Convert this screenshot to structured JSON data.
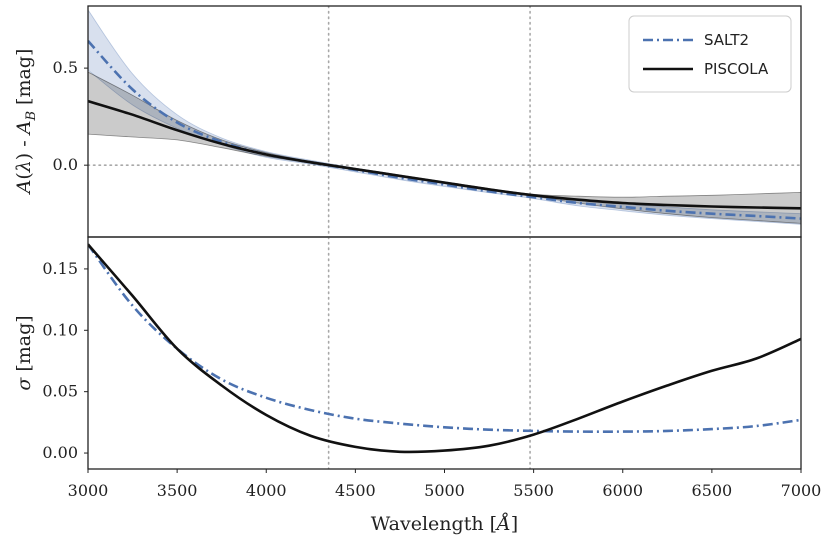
{
  "chart_data": [
    {
      "type": "line",
      "panel": "top",
      "ylabel": "A(λ) - A_B [mag]",
      "ylim": [
        -0.37,
        0.82
      ],
      "yticks": [
        0.0,
        0.5
      ],
      "ytick_labels": [
        "0.0",
        "0.5"
      ],
      "xlim": [
        3000,
        7000
      ],
      "vlines": [
        4350,
        5480
      ],
      "hline": 0.0,
      "x": [
        3000,
        3250,
        3500,
        3750,
        4000,
        4250,
        4500,
        4750,
        5000,
        5250,
        5500,
        5750,
        6000,
        6250,
        6500,
        6750,
        7000
      ],
      "series": [
        {
          "name": "SALT2",
          "color": "#4c72b0",
          "style": "dashdot",
          "values": [
            0.64,
            0.39,
            0.22,
            0.12,
            0.055,
            0.015,
            -0.025,
            -0.065,
            -0.1,
            -0.135,
            -0.165,
            -0.195,
            -0.215,
            -0.235,
            -0.25,
            -0.262,
            -0.275
          ],
          "band_lower": [
            0.49,
            0.31,
            0.19,
            0.105,
            0.04,
            0.005,
            -0.035,
            -0.075,
            -0.11,
            -0.142,
            -0.172,
            -0.21,
            -0.235,
            -0.258,
            -0.275,
            -0.29,
            -0.305
          ],
          "band_upper": [
            0.8,
            0.47,
            0.26,
            0.14,
            0.07,
            0.025,
            -0.015,
            -0.055,
            -0.09,
            -0.128,
            -0.158,
            -0.18,
            -0.2,
            -0.215,
            -0.23,
            -0.24,
            -0.25
          ]
        },
        {
          "name": "PISCOLA",
          "color": "#111111",
          "style": "solid",
          "values": [
            0.33,
            0.26,
            0.18,
            0.11,
            0.055,
            0.015,
            -0.02,
            -0.055,
            -0.09,
            -0.125,
            -0.155,
            -0.178,
            -0.195,
            -0.205,
            -0.213,
            -0.218,
            -0.222
          ],
          "band_lower": [
            0.16,
            0.145,
            0.13,
            0.09,
            0.045,
            0.01,
            -0.025,
            -0.06,
            -0.095,
            -0.13,
            -0.16,
            -0.195,
            -0.225,
            -0.25,
            -0.27,
            -0.285,
            -0.3
          ],
          "band_upper": [
            0.48,
            0.36,
            0.23,
            0.13,
            0.065,
            0.02,
            -0.015,
            -0.05,
            -0.085,
            -0.12,
            -0.15,
            -0.16,
            -0.165,
            -0.16,
            -0.155,
            -0.148,
            -0.14
          ]
        }
      ]
    },
    {
      "type": "line",
      "panel": "bottom",
      "xlabel": "Wavelength [Å]",
      "ylabel": "σ [mag]",
      "ylim": [
        -0.013,
        0.176
      ],
      "xlim": [
        3000,
        7000
      ],
      "yticks": [
        0.0,
        0.05,
        0.1,
        0.15
      ],
      "ytick_labels": [
        "0.00",
        "0.05",
        "0.10",
        "0.15"
      ],
      "xticks": [
        3000,
        3500,
        4000,
        4500,
        5000,
        5500,
        6000,
        6500,
        7000
      ],
      "xtick_labels": [
        "3000",
        "3500",
        "4000",
        "4500",
        "5000",
        "5500",
        "6000",
        "6500",
        "7000"
      ],
      "vlines": [
        4350,
        5480
      ],
      "x": [
        3000,
        3250,
        3500,
        3750,
        4000,
        4250,
        4500,
        4750,
        5000,
        5250,
        5500,
        5750,
        6000,
        6250,
        6500,
        6750,
        7000
      ],
      "series": [
        {
          "name": "SALT2",
          "color": "#4c72b0",
          "style": "dashdot",
          "values": [
            0.17,
            0.12,
            0.085,
            0.06,
            0.045,
            0.035,
            0.028,
            0.024,
            0.021,
            0.019,
            0.018,
            0.0175,
            0.0175,
            0.018,
            0.0195,
            0.022,
            0.027
          ]
        },
        {
          "name": "PISCOLA",
          "color": "#111111",
          "style": "solid",
          "values": [
            0.17,
            0.128,
            0.085,
            0.055,
            0.031,
            0.014,
            0.005,
            0.001,
            0.002,
            0.006,
            0.015,
            0.028,
            0.042,
            0.055,
            0.067,
            0.077,
            0.093
          ]
        }
      ]
    }
  ],
  "legend": {
    "position": "top-right",
    "entries": [
      "SALT2",
      "PISCOLA"
    ]
  }
}
